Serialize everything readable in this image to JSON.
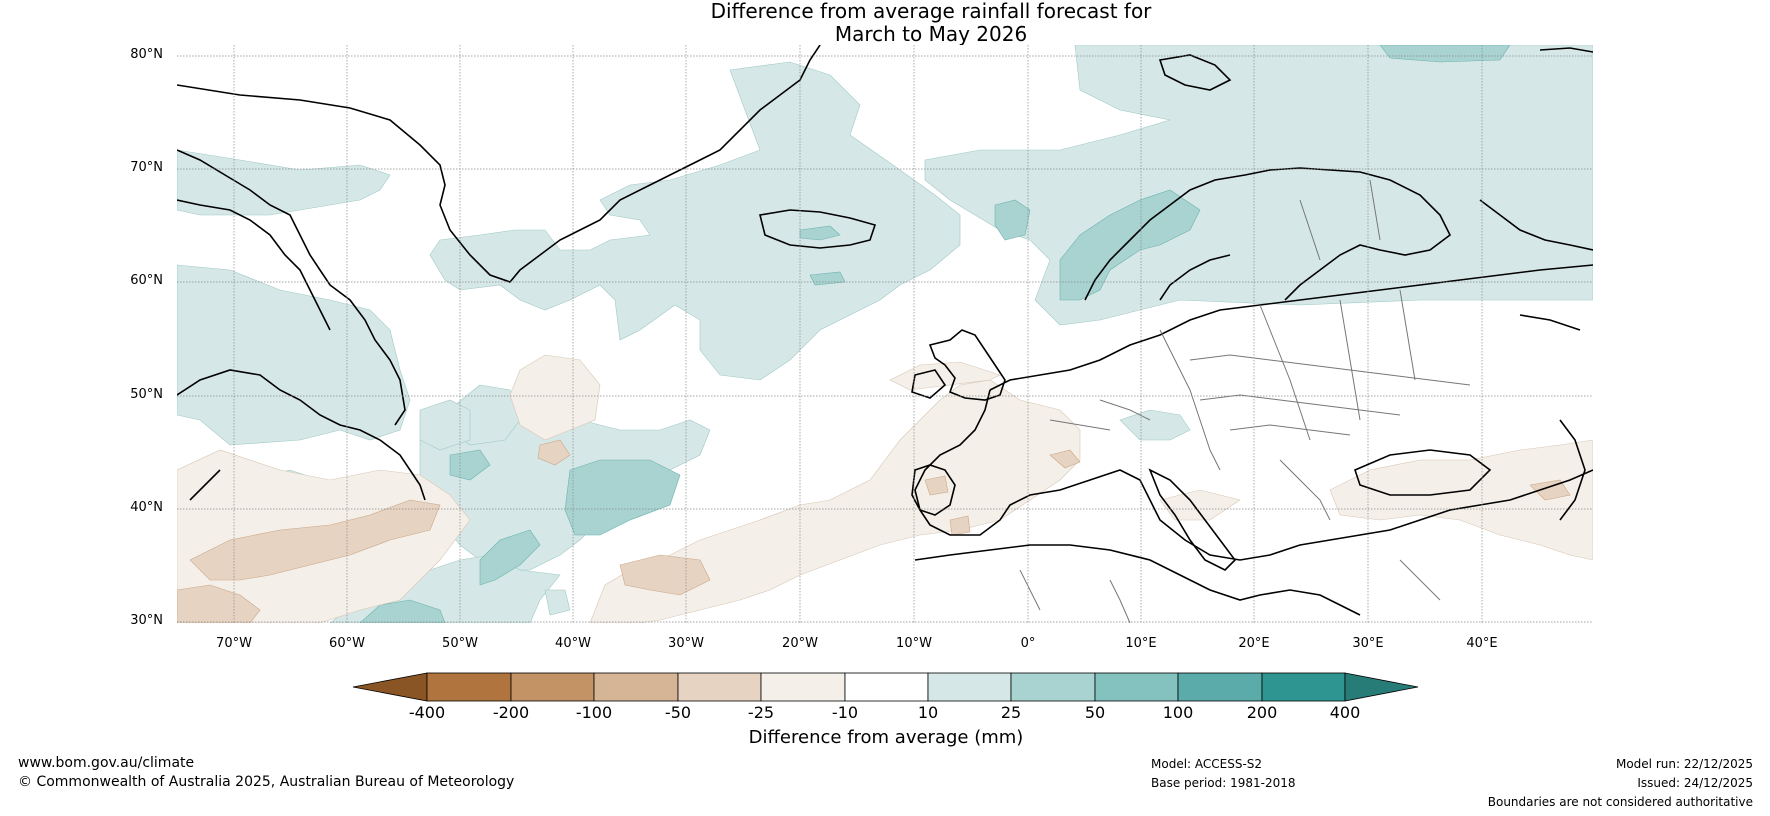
{
  "title": {
    "line1": "Difference from average rainfall forecast for",
    "line2": "March to May 2026"
  },
  "map": {
    "region": "North Atlantic and Europe",
    "lat_labels": [
      "80°N",
      "70°N",
      "60°N",
      "50°N",
      "40°N",
      "30°N"
    ],
    "lon_labels": [
      "70°W",
      "60°W",
      "50°W",
      "40°W",
      "30°W",
      "20°W",
      "10°W",
      "0°",
      "10°E",
      "20°E",
      "30°E",
      "40°E"
    ]
  },
  "legend": {
    "title": "Difference from average (mm)",
    "tick_labels": [
      "-400",
      "-200",
      "-100",
      "-50",
      "-25",
      "-10",
      "10",
      "25",
      "50",
      "100",
      "200",
      "400"
    ],
    "colors": [
      "#8a5524",
      "#b0743e",
      "#c39265",
      "#d6b597",
      "#e7d3c2",
      "#f4efe8",
      "#ffffff",
      "#d5e8e7",
      "#a8d3d1",
      "#84c2bf",
      "#5aaba9",
      "#2f9590",
      "#277c77"
    ]
  },
  "footer": {
    "website": "www.bom.gov.au/climate",
    "copyright": "© Commonwealth of Australia 2025, Australian Bureau of Meteorology",
    "model": "Model: ACCESS-S2",
    "base_period": "Base period: 1981-2018",
    "model_run": "Model run: 22/12/2025",
    "issued": "Issued: 24/12/2025",
    "disclaimer": "Boundaries are not considered authoritative"
  }
}
